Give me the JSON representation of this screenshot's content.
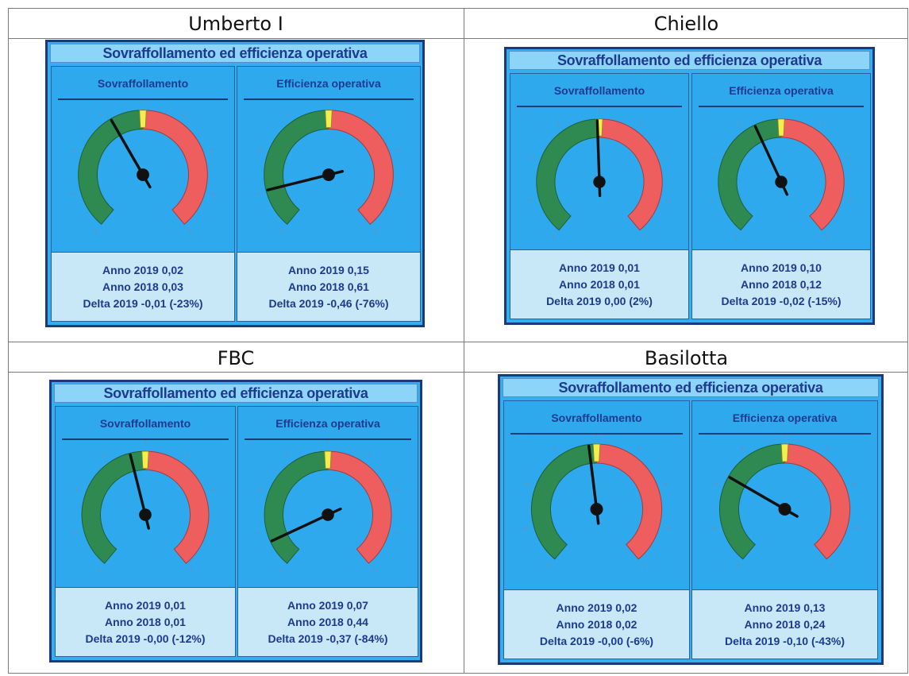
{
  "panel_title": "Sovraffollamento ed efficienza operativa",
  "labels": {
    "year_current": "Anno 2019",
    "year_previous": "Anno 2018",
    "delta": "Delta 2019"
  },
  "colors": {
    "panel_bg": "#35aef0",
    "title_bg": "#8cd4f8",
    "green": "#2f8a52",
    "red": "#ee5e5e",
    "yellow": "#f3ee4f",
    "needle": "#111111"
  },
  "hospitals": [
    {
      "name": "Umberto I",
      "gauges": [
        {
          "title": "Sovraffollamento",
          "needle_deg": -30,
          "line1": "Anno 2019 0,02",
          "line2": "Anno 2018 0,03",
          "line3": "Delta 2019 -0,01 (-23%)"
        },
        {
          "title": "Efficienza operativa",
          "needle_deg": -104,
          "line1": "Anno 2019 0,15",
          "line2": "Anno 2018 0,61",
          "line3": "Delta 2019 -0,46 (-76%)"
        }
      ]
    },
    {
      "name": "Chiello",
      "gauges": [
        {
          "title": "Sovraffollamento",
          "needle_deg": -2,
          "line1": "Anno 2019 0,01",
          "line2": "Anno 2018 0,01",
          "line3": "Delta 2019 0,00 (2%)"
        },
        {
          "title": "Efficienza operativa",
          "needle_deg": -25,
          "line1": "Anno 2019 0,10",
          "line2": "Anno 2018 0,12",
          "line3": "Delta 2019 -0,02 (-15%)"
        }
      ]
    },
    {
      "name": "FBC",
      "gauges": [
        {
          "title": "Sovraffollamento",
          "needle_deg": -14,
          "line1": "Anno 2019 0,01",
          "line2": "Anno 2018 0,01",
          "line3": "Delta 2019 -0,00 (-12%)"
        },
        {
          "title": "Efficienza operativa",
          "needle_deg": -115,
          "line1": "Anno 2019 0,07",
          "line2": "Anno 2018 0,44",
          "line3": "Delta 2019 -0,37 (-84%)"
        }
      ]
    },
    {
      "name": "Basilotta",
      "gauges": [
        {
          "title": "Sovraffollamento",
          "needle_deg": -7,
          "line1": "Anno 2019 0,02",
          "line2": "Anno 2018 0,02",
          "line3": "Delta 2019 -0,00 (-6%)"
        },
        {
          "title": "Efficienza operativa",
          "needle_deg": -60,
          "line1": "Anno 2019 0,13",
          "line2": "Anno 2018 0,24",
          "line3": "Delta 2019 -0,10 (-43%)"
        }
      ]
    }
  ]
}
